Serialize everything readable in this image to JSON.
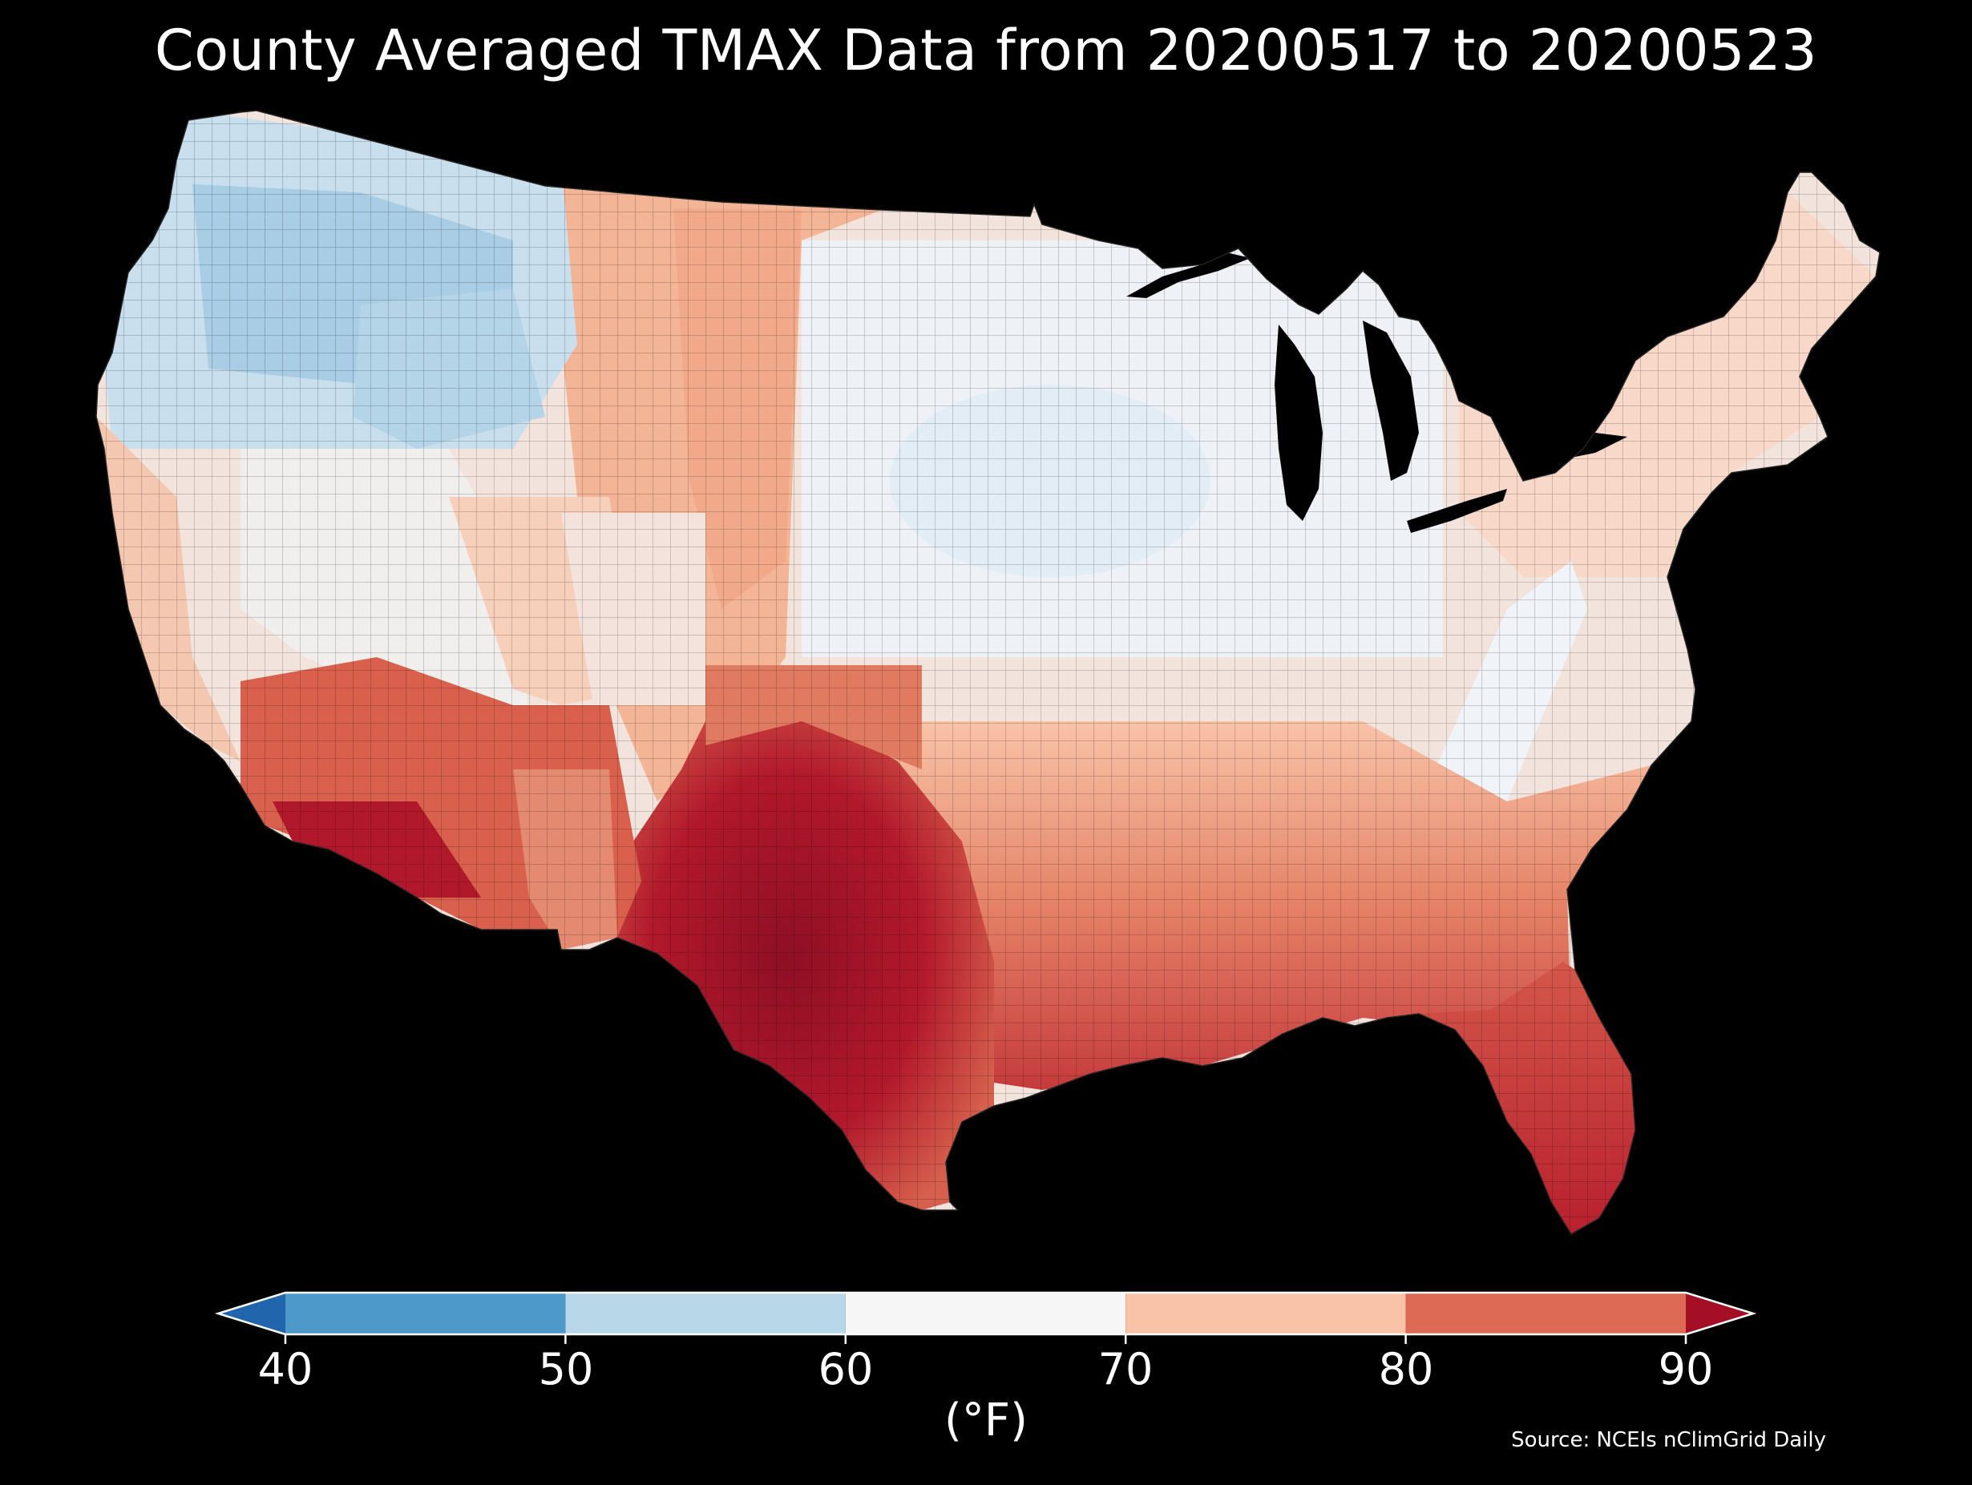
{
  "title": "County Averaged TMAX Data from 20200517 to 20200523",
  "source": "Source: NCEIs nClimGrid Daily",
  "colorbar": {
    "unit": "(°F)",
    "ticks": [
      "40",
      "50",
      "60",
      "70",
      "80",
      "90"
    ],
    "tick_values": [
      40,
      50,
      60,
      70,
      80,
      90
    ],
    "extend": "both",
    "under_color": "#2166ac",
    "over_color": "#a50f26",
    "bins": [
      {
        "from": 40,
        "to": 50,
        "color": "#4d99c9"
      },
      {
        "from": 50,
        "to": 60,
        "color": "#b8d8ea"
      },
      {
        "from": 60,
        "to": 70,
        "color": "#f6f6f6"
      },
      {
        "from": 70,
        "to": 80,
        "color": "#f8c3a7"
      },
      {
        "from": 80,
        "to": 90,
        "color": "#dd6a54"
      }
    ]
  },
  "map": {
    "region": "Contiguous United States",
    "variable": "TMAX",
    "regional_pattern": [
      {
        "region": "Pacific Northwest",
        "color": "#b8d8ea"
      },
      {
        "region": "Northern Rockies",
        "color": "#a3c9e2"
      },
      {
        "region": "Great Plains",
        "color": "#f4b496"
      },
      {
        "region": "Midwest",
        "color": "#eef3f7"
      },
      {
        "region": "Northeast",
        "color": "#f8d9c9"
      },
      {
        "region": "Appalachians",
        "color": "#f2f4f7"
      },
      {
        "region": "Desert Southwest",
        "color": "#b2182b"
      },
      {
        "region": "South Texas",
        "color": "#8e0f24"
      },
      {
        "region": "Southeast",
        "color": "#d6604d"
      },
      {
        "region": "Florida",
        "color": "#c03538"
      }
    ]
  }
}
